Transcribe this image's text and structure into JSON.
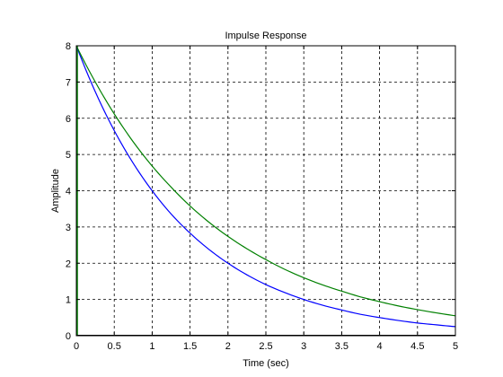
{
  "chart_data": {
    "type": "line",
    "title": "Impulse Response",
    "xlabel": "Time (sec)",
    "ylabel": "Amplitude",
    "xlim": [
      0,
      5
    ],
    "ylim": [
      0,
      8
    ],
    "xticks": [
      "0",
      "0.5",
      "1",
      "1.5",
      "2",
      "2.5",
      "3",
      "3.5",
      "4",
      "4.5",
      "5"
    ],
    "yticks": [
      "0",
      "1",
      "2",
      "3",
      "4",
      "5",
      "6",
      "7",
      "8"
    ],
    "grid": true,
    "x": [
      0,
      0.25,
      0.5,
      0.75,
      1,
      1.25,
      1.5,
      1.75,
      2,
      2.25,
      2.5,
      2.75,
      3,
      3.25,
      3.5,
      3.75,
      4,
      4.25,
      4.5,
      4.75,
      5
    ],
    "series": [
      {
        "color": "#0000ff",
        "values": [
          8.0,
          6.73,
          5.66,
          4.76,
          4.0,
          3.36,
          2.83,
          2.38,
          2.0,
          1.68,
          1.41,
          1.19,
          1.0,
          0.84,
          0.71,
          0.59,
          0.5,
          0.42,
          0.35,
          0.3,
          0.25
        ]
      },
      {
        "color": "#008000",
        "values": [
          8.0,
          7.0,
          6.12,
          5.35,
          4.68,
          4.1,
          3.58,
          3.13,
          2.74,
          2.4,
          2.1,
          1.83,
          1.6,
          1.4,
          1.23,
          1.07,
          0.94,
          0.82,
          0.72,
          0.63,
          0.55
        ]
      }
    ],
    "impulse_marker": {
      "color": "#008000",
      "x": 0,
      "from": 0,
      "to": 8
    }
  }
}
